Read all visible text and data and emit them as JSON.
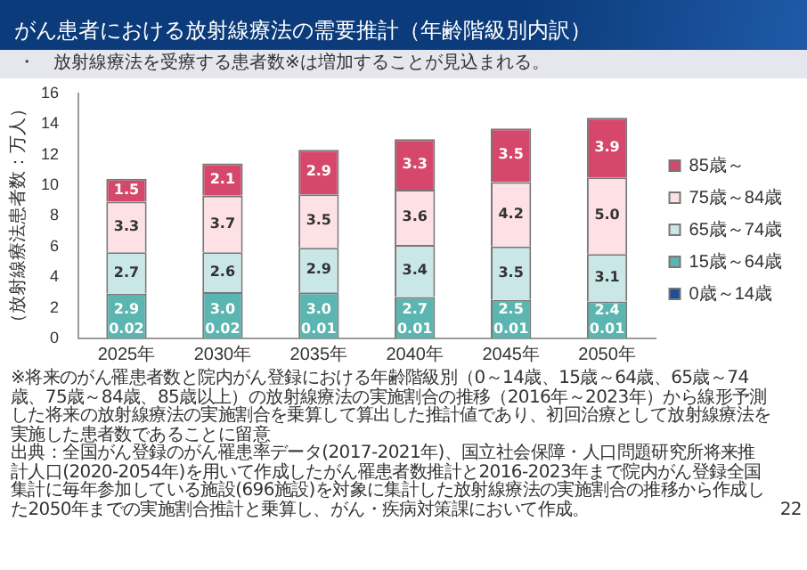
{
  "chart_data": {
    "type": "bar",
    "title": "がん患者における放射線療法の需要推計（年齢階級別内訳）",
    "subtitle": "・　放射線療法を受療する患者数※は増加することが見込まれる。",
    "ylabel": "（放射線療法患者数：万人）",
    "categories": [
      "2025年",
      "2030年",
      "2035年",
      "2040年",
      "2045年",
      "2050年"
    ],
    "stacked": true,
    "series": [
      {
        "name": "0歳～14歳",
        "color": "#1f4e9a",
        "values": [
          0.02,
          0.02,
          0.01,
          0.01,
          0.01,
          0.01
        ],
        "value_labels": [
          "0.02",
          "0.02",
          "0.01",
          "0.01",
          "0.01",
          "0.01"
        ]
      },
      {
        "name": "15歳～64歳",
        "color": "#5bb5b0",
        "values": [
          2.9,
          3.0,
          3.0,
          2.7,
          2.5,
          2.4
        ],
        "value_labels": [
          "2.9",
          "3.0",
          "3.0",
          "2.7",
          "2.5",
          "2.4"
        ]
      },
      {
        "name": "65歳～74歳",
        "color": "#c9e7e6",
        "values": [
          2.7,
          2.6,
          2.9,
          3.4,
          3.5,
          3.1
        ],
        "value_labels": [
          "2.7",
          "2.6",
          "2.9",
          "3.4",
          "3.5",
          "3.1"
        ]
      },
      {
        "name": "75歳～84歳",
        "color": "#fde1e4",
        "values": [
          3.3,
          3.7,
          3.5,
          3.6,
          4.2,
          5.0
        ],
        "value_labels": [
          "3.3",
          "3.7",
          "3.5",
          "3.6",
          "4.2",
          "5.0"
        ]
      },
      {
        "name": "85歳～",
        "color": "#d6486b",
        "values": [
          1.5,
          2.1,
          2.9,
          3.3,
          3.5,
          3.9
        ],
        "value_labels": [
          "1.5",
          "2.1",
          "2.9",
          "3.3",
          "3.5",
          "3.9"
        ]
      }
    ],
    "ylim": [
      0,
      16
    ],
    "yticks": [
      0,
      2,
      4,
      6,
      8,
      10,
      12,
      14,
      16
    ],
    "grid": false,
    "legend": "right",
    "annotations": [
      "※将来のがん罹患者数と院内がん登録における年齢階級別（0～14歳、15歳～64歳、65歳～74歳、75歳～84歳、85歳以上）の放射線療法の実施割合の推移（2016年～2023年）から線形予測した将来の放射線療法の実施割合を乗算して算出した推計値であり、初回治療として放射線療法を実施した患者数であることに留意",
      "出典：全国がん登録のがん罹患率データ(2017-2021年)、国立社会保障・人口問題研究所将来推計人口(2020-2054年)を用いて作成したがん罹患者数推計と2016-2023年まで院内がん登録全国集計に毎年参加している施設(696施設)を対象に集計した放射線療法の実施割合の推移から作成した2050年までの実施割合推計と乗算し、がん・疾病対策課において作成。",
      "22"
    ]
  }
}
